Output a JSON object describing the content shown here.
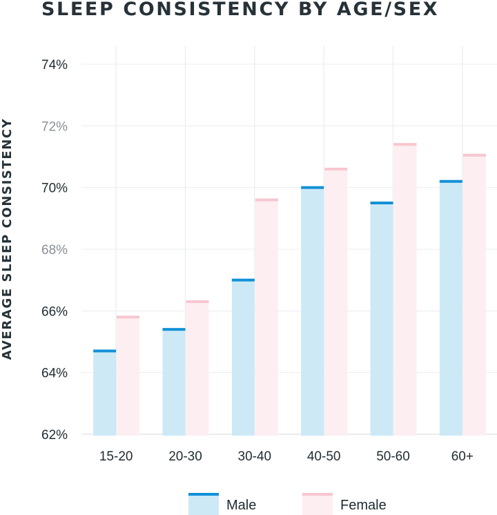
{
  "chart_data": {
    "type": "bar",
    "title": "SLEEP CONSISTENCY BY AGE/SEX",
    "xlabel": "",
    "ylabel": "AVERAGE SLEEP CONSISTENCY",
    "ylim": [
      62,
      74
    ],
    "yticks": [
      {
        "value": 74,
        "label": "74%",
        "color": "#1f2a30"
      },
      {
        "value": 72,
        "label": "72%",
        "color": "#8a9095"
      },
      {
        "value": 70,
        "label": "70%",
        "color": "#1f2a30"
      },
      {
        "value": 68,
        "label": "68%",
        "color": "#8a9095"
      },
      {
        "value": 66,
        "label": "66%",
        "color": "#1f2a30"
      },
      {
        "value": 64,
        "label": "64%",
        "color": "#1f2a30"
      },
      {
        "value": 62,
        "label": "62%",
        "color": "#1f2a30"
      }
    ],
    "categories": [
      "15-20",
      "20-30",
      "30-40",
      "40-50",
      "50-60",
      "60+"
    ],
    "series": [
      {
        "name": "Male",
        "values": [
          64.7,
          65.4,
          67.0,
          70.0,
          69.5,
          70.2
        ],
        "fill": "#cde9f6",
        "cap": "#1190d6"
      },
      {
        "name": "Female",
        "values": [
          65.8,
          66.3,
          69.6,
          70.6,
          71.4,
          71.05
        ],
        "fill": "#fdeef1",
        "cap": "#f7c6d0"
      }
    ],
    "legend_position": "bottom",
    "grid": true
  }
}
